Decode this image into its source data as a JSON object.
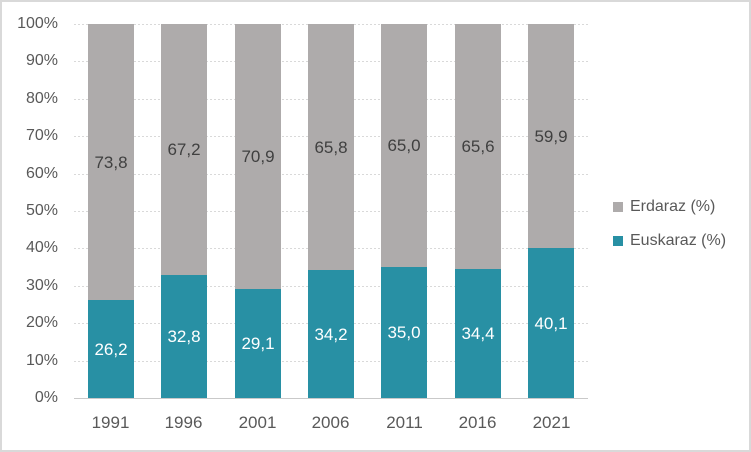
{
  "chart_data": {
    "type": "bar",
    "variant": "stacked-100-percent",
    "title": "",
    "xlabel": "",
    "ylabel": "",
    "categories": [
      "1991",
      "1996",
      "2001",
      "2006",
      "2011",
      "2016",
      "2021"
    ],
    "series": [
      {
        "name": "Euskaraz (%)",
        "color": "#2890A4",
        "label_color": "#FFFFFF",
        "values": [
          26.2,
          32.8,
          29.1,
          34.2,
          35.0,
          34.4,
          40.1
        ],
        "labels": [
          "26,2",
          "32,8",
          "29,1",
          "34,2",
          "35,0",
          "34,4",
          "40,1"
        ]
      },
      {
        "name": "Erdaraz (%)",
        "color": "#AEABAB",
        "label_color": "#404040",
        "values": [
          73.8,
          67.2,
          70.9,
          65.8,
          65.0,
          65.6,
          59.9
        ],
        "labels": [
          "73,8",
          "67,2",
          "70,9",
          "65,8",
          "65,0",
          "65,6",
          "59,9"
        ]
      }
    ],
    "ylim": [
      0,
      100
    ],
    "y_ticks": [
      "100%",
      "90%",
      "80%",
      "70%",
      "60%",
      "50%",
      "40%",
      "30%",
      "20%",
      "10%",
      "0%"
    ],
    "grid": true,
    "legend_position": "right",
    "legend": [
      {
        "label": "Erdaraz (%)",
        "color": "#AEABAB"
      },
      {
        "label": "Euskaraz (%)",
        "color": "#2890A4"
      }
    ],
    "colors": {
      "grid": "#D9D9D9",
      "axis_line": "#C9C9C9",
      "tick_text": "#595959",
      "background": "#FFFFFF",
      "border": "#D9D9D9"
    }
  }
}
